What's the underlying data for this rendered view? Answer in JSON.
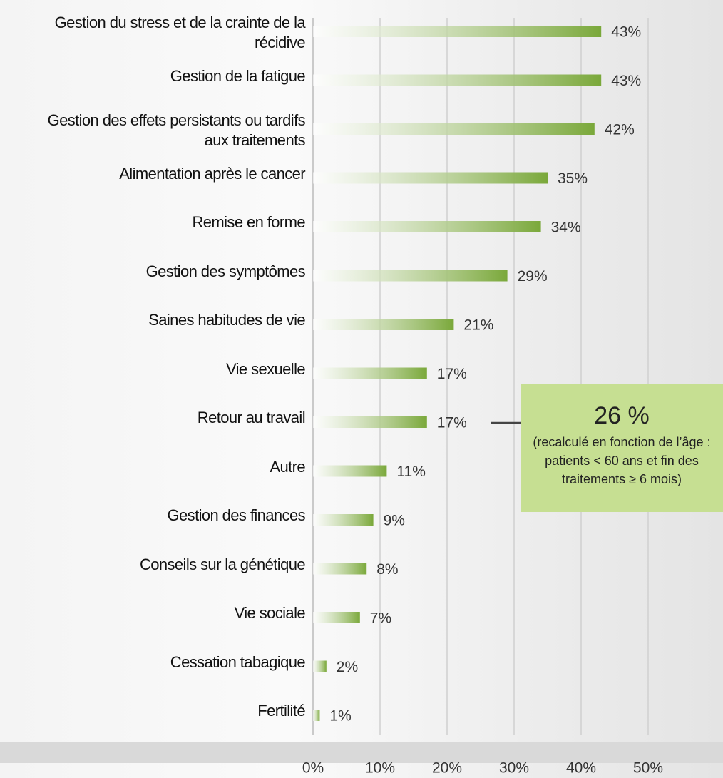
{
  "chart_data": {
    "type": "hbar",
    "categories": [
      "Gestion du stress et de la crainte de la récidive",
      "Gestion de la fatigue",
      "Gestion des effets persistants ou tardifs aux traitements",
      "Alimentation après le cancer",
      "Remise en forme",
      "Gestion des symptômes",
      "Saines habitudes de vie",
      "Vie sexuelle",
      "Retour au travail",
      "Autre",
      "Gestion des finances",
      "Conseils sur la génétique",
      "Vie sociale",
      "Cessation tabagique",
      "Fertilité"
    ],
    "values": [
      43,
      43,
      42,
      35,
      34,
      29,
      21,
      17,
      17,
      11,
      9,
      8,
      7,
      2,
      1
    ],
    "value_labels": [
      "43%",
      "43%",
      "42%",
      "35%",
      "34%",
      "29%",
      "21%",
      "17%",
      "17%",
      "11%",
      "9%",
      "8%",
      "7%",
      "2%",
      "1%"
    ],
    "color": "#7aa83a",
    "xlim": [
      0,
      50
    ],
    "xticks": [
      {
        "value": 0,
        "label": "0%"
      },
      {
        "value": 10,
        "label": "10%"
      },
      {
        "value": 20,
        "label": "20%"
      },
      {
        "value": 30,
        "label": "30%"
      },
      {
        "value": 40,
        "label": "40%"
      },
      {
        "value": 50,
        "label": "50%"
      }
    ],
    "grid": true,
    "annotation": {
      "title": "26 %",
      "text": "(recalculé en fonction de l’âge : patients < 60 ans et fin des traitements ≥ 6 mois)"
    }
  }
}
